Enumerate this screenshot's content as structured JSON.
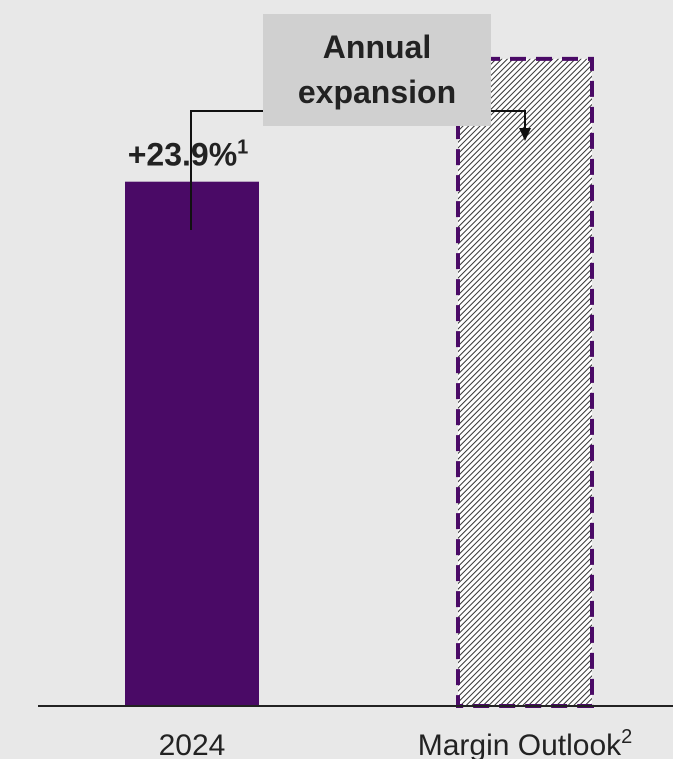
{
  "colors": {
    "background": "#e8e8e8",
    "bar_fill": "#4a0a66",
    "outlook_border": "#4a0a66",
    "hatch": "#333333",
    "callout_box": "#d0d0d0",
    "text": "#222222"
  },
  "callout": {
    "line1": "Annual",
    "line2": "expansion"
  },
  "chart_data": {
    "type": "bar",
    "categories": [
      "2024",
      "Margin Outlook"
    ],
    "category_superscripts": [
      "",
      "2"
    ],
    "values": [
      23.9,
      29.5
    ],
    "value_labels": [
      "+23.9%",
      ""
    ],
    "value_label_superscripts": [
      "1",
      ""
    ],
    "bar_styles": [
      "solid",
      "hatched-dashed"
    ],
    "title": "",
    "xlabel": "",
    "ylabel": "",
    "ylim": [
      0,
      32
    ],
    "grid": false,
    "legend": "none"
  }
}
